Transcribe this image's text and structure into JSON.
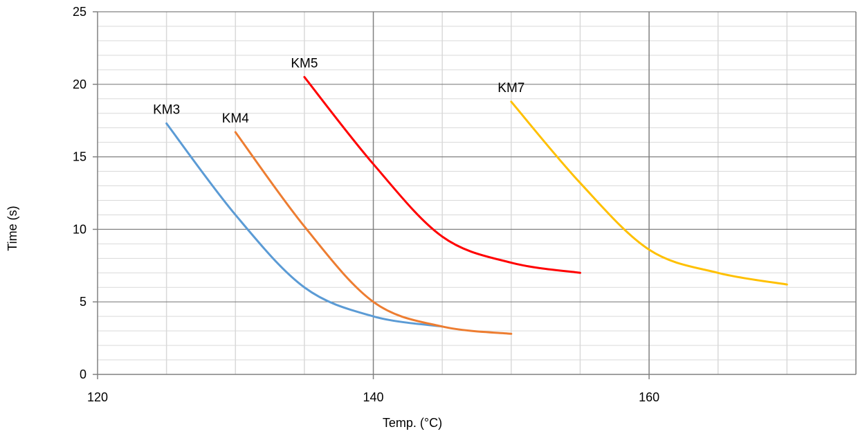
{
  "chart_data": {
    "type": "line",
    "xlabel": "Temp. (°C)",
    "ylabel": "Time (s)",
    "xlim": [
      120,
      175
    ],
    "ylim": [
      0,
      25
    ],
    "x_ticks": [
      120,
      140,
      160
    ],
    "y_ticks": [
      0,
      5,
      10,
      15,
      20,
      25
    ],
    "x_minor_step": 5,
    "y_minor_step": 1,
    "grid": true,
    "legend": "none",
    "series": [
      {
        "name": "KM3",
        "color": "#5b9bd5",
        "x": [
          125,
          130,
          135,
          140,
          145
        ],
        "y": [
          17.3,
          11.0,
          6.0,
          4.0,
          3.3
        ]
      },
      {
        "name": "KM4",
        "color": "#ed7d31",
        "x": [
          130,
          135,
          140,
          145,
          150
        ],
        "y": [
          16.7,
          10.2,
          5.0,
          3.3,
          2.8
        ]
      },
      {
        "name": "KM5",
        "color": "#ff0000",
        "x": [
          135,
          140,
          145,
          150,
          155
        ],
        "y": [
          20.5,
          14.5,
          9.5,
          7.7,
          7.0
        ]
      },
      {
        "name": "KM7",
        "color": "#ffc000",
        "x": [
          150,
          155,
          160,
          165,
          170
        ],
        "y": [
          18.8,
          13.2,
          8.6,
          7.0,
          6.2
        ]
      }
    ]
  }
}
